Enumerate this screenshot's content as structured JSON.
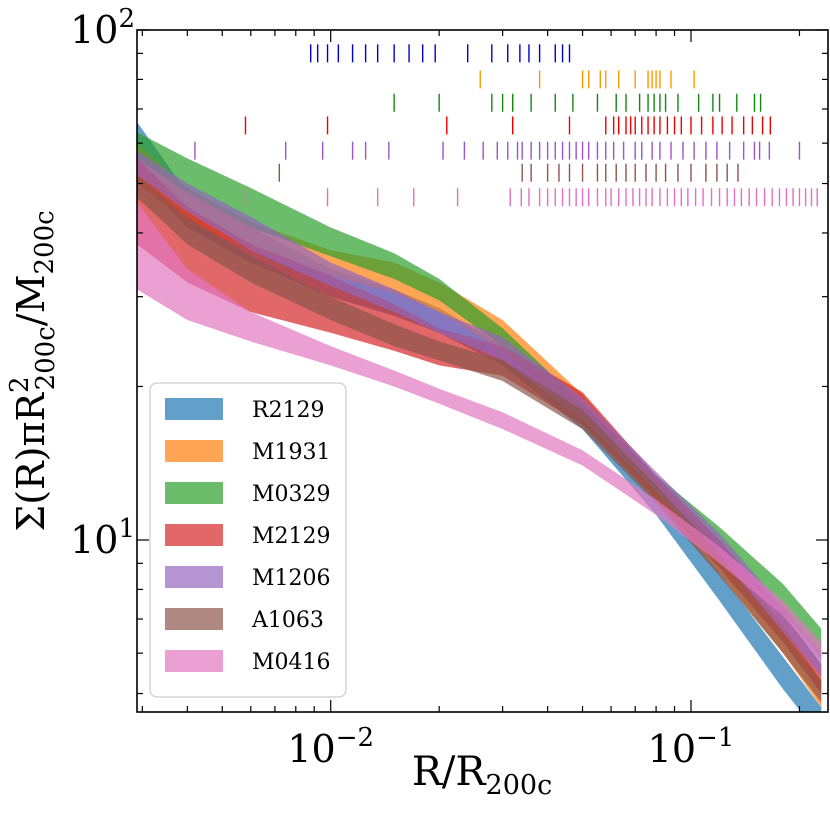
{
  "chart_data": {
    "type": "area",
    "x_scale": "log",
    "y_scale": "log",
    "xlim": [
      0.0029,
      0.24
    ],
    "ylim": [
      4.6,
      100
    ],
    "xlabel": "R/R_200c",
    "ylabel": "Σ(R)πR²_200c/M_200c",
    "x_ticks": [
      {
        "value": 0.01,
        "base": "10",
        "exp": "−2"
      },
      {
        "value": 0.1,
        "base": "10",
        "exp": "−1"
      }
    ],
    "y_ticks": [
      {
        "value": 10,
        "base": "10",
        "exp": "1"
      },
      {
        "value": 100,
        "base": "10",
        "exp": "2"
      }
    ],
    "legend_position": "lower-left",
    "series": [
      {
        "name": "R2129",
        "color": "#1f77b4",
        "x": [
          0.0029,
          0.004,
          0.006,
          0.01,
          0.015,
          0.02,
          0.03,
          0.05,
          0.08,
          0.12,
          0.18,
          0.23
        ],
        "lower": [
          52,
          41,
          35,
          30,
          27.5,
          25.5,
          22,
          16.5,
          11.2,
          7.6,
          5.1,
          4.1
        ],
        "upper": [
          66,
          48,
          41,
          34,
          31,
          28.5,
          24,
          18.5,
          12.4,
          8.6,
          5.9,
          4.7
        ]
      },
      {
        "name": "M1931",
        "color": "#ff7f0e",
        "x": [
          0.0029,
          0.004,
          0.006,
          0.01,
          0.015,
          0.02,
          0.03,
          0.05,
          0.08,
          0.12,
          0.18,
          0.23
        ],
        "lower": [
          50,
          42,
          37,
          33,
          30.5,
          28,
          23.5,
          17.3,
          12,
          8.6,
          6,
          4.7
        ],
        "upper": [
          60,
          49,
          42,
          37,
          35,
          32,
          27,
          19.3,
          13.2,
          9.6,
          6.8,
          5.3
        ]
      },
      {
        "name": "M0329",
        "color": "#2ca02c",
        "x": [
          0.0029,
          0.004,
          0.006,
          0.01,
          0.015,
          0.02,
          0.03,
          0.05,
          0.08,
          0.12,
          0.18,
          0.23
        ],
        "lower": [
          56,
          48,
          41,
          36,
          32.5,
          29.5,
          24,
          17,
          12.3,
          9.4,
          7.2,
          5.9
        ],
        "upper": [
          63,
          56,
          49,
          41,
          36.5,
          32.5,
          26,
          18.5,
          13.4,
          10.6,
          8.2,
          6.7
        ]
      },
      {
        "name": "M2129",
        "color": "#d62728",
        "x": [
          0.0029,
          0.004,
          0.006,
          0.01,
          0.015,
          0.02,
          0.03,
          0.05,
          0.08,
          0.12,
          0.18,
          0.23
        ],
        "lower": [
          38,
          32,
          28,
          25.5,
          23.5,
          22,
          21,
          16.8,
          12,
          8.8,
          6.3,
          5
        ],
        "upper": [
          56,
          45,
          38,
          33,
          29,
          26,
          24,
          19.5,
          13.4,
          10,
          7.2,
          5.7
        ]
      },
      {
        "name": "M1206",
        "color": "#9467bd",
        "x": [
          0.0029,
          0.004,
          0.006,
          0.01,
          0.015,
          0.02,
          0.03,
          0.05,
          0.08,
          0.12,
          0.18,
          0.23
        ],
        "lower": [
          52,
          44,
          37,
          31.5,
          28,
          25.5,
          22.5,
          17.2,
          12.4,
          9.2,
          6.6,
          5.4
        ],
        "upper": [
          58,
          50,
          43,
          35,
          31,
          28,
          25,
          19,
          13.6,
          10.3,
          7.4,
          6
        ]
      },
      {
        "name": "A1063",
        "color": "#8c564b",
        "x": [
          0.0029,
          0.004,
          0.006,
          0.01,
          0.015,
          0.02,
          0.03,
          0.05,
          0.08,
          0.12,
          0.18,
          0.23
        ],
        "lower": [
          47,
          38,
          32,
          27,
          24,
          22.5,
          20.5,
          16.5,
          11.8,
          8.5,
          6,
          4.8
        ],
        "upper": [
          52,
          43,
          36,
          30,
          26.5,
          24.5,
          22.5,
          18,
          12.8,
          9.4,
          6.6,
          5.3
        ]
      },
      {
        "name": "M0416",
        "color": "#e377c2",
        "x": [
          0.0029,
          0.004,
          0.006,
          0.01,
          0.015,
          0.02,
          0.03,
          0.05,
          0.08,
          0.12,
          0.18,
          0.23
        ],
        "lower": [
          31,
          27,
          24.5,
          22,
          20,
          18.5,
          16.5,
          14,
          11.2,
          9,
          7.1,
          5.8
        ],
        "upper": [
          46,
          34,
          28,
          24,
          21.5,
          19.8,
          17.8,
          15,
          12,
          9.7,
          7.6,
          6.3
        ]
      }
    ],
    "rugs": [
      {
        "name": "R2129",
        "color": "#0000cc",
        "y": 90,
        "x": [
          0.0088,
          0.0092,
          0.0098,
          0.0105,
          0.0115,
          0.0125,
          0.0135,
          0.015,
          0.0165,
          0.018,
          0.0195,
          0.024,
          0.028,
          0.031,
          0.0335,
          0.0355,
          0.038,
          0.042,
          0.044,
          0.046
        ]
      },
      {
        "name": "M1931",
        "color": "#ff9900",
        "y": 80,
        "x": [
          0.026,
          0.038,
          0.05,
          0.052,
          0.056,
          0.058,
          0.063,
          0.07,
          0.076,
          0.078,
          0.08,
          0.082,
          0.088,
          0.102
        ]
      },
      {
        "name": "M0329",
        "color": "#118811",
        "y": 72,
        "x": [
          0.015,
          0.02,
          0.028,
          0.03,
          0.032,
          0.036,
          0.042,
          0.047,
          0.055,
          0.062,
          0.066,
          0.072,
          0.076,
          0.079,
          0.082,
          0.085,
          0.092,
          0.105,
          0.115,
          0.12,
          0.134,
          0.15,
          0.156
        ]
      },
      {
        "name": "M2129",
        "color": "#ee0000",
        "y": 65,
        "x": [
          0.0058,
          0.0098,
          0.021,
          0.032,
          0.046,
          0.058,
          0.061,
          0.063,
          0.066,
          0.068,
          0.07,
          0.073,
          0.076,
          0.079,
          0.082,
          0.086,
          0.09,
          0.094,
          0.1,
          0.107,
          0.115,
          0.122,
          0.13,
          0.14,
          0.148,
          0.158,
          0.166
        ]
      },
      {
        "name": "M1206",
        "color": "#9955cc",
        "y": 58,
        "x": [
          0.0042,
          0.0075,
          0.0095,
          0.0115,
          0.0125,
          0.0145,
          0.0205,
          0.0235,
          0.0265,
          0.029,
          0.031,
          0.033,
          0.034,
          0.036,
          0.038,
          0.04,
          0.042,
          0.044,
          0.046,
          0.048,
          0.05,
          0.052,
          0.055,
          0.058,
          0.061,
          0.065,
          0.07,
          0.073,
          0.078,
          0.082,
          0.088,
          0.095,
          0.102,
          0.11,
          0.118,
          0.128,
          0.14,
          0.15,
          0.155,
          0.165,
          0.2
        ]
      },
      {
        "name": "A1063",
        "color": "#8c564b",
        "y": 52.5,
        "x": [
          0.0072,
          0.034,
          0.036,
          0.04,
          0.043,
          0.046,
          0.05,
          0.055,
          0.058,
          0.062,
          0.066,
          0.07,
          0.075,
          0.08,
          0.085,
          0.092,
          0.1,
          0.11,
          0.118,
          0.126,
          0.135
        ]
      },
      {
        "name": "M0416",
        "color": "#e070c0",
        "y": 47,
        "x": [
          0.0058,
          0.0098,
          0.0135,
          0.017,
          0.0225,
          0.0315,
          0.0338,
          0.0355,
          0.038,
          0.04,
          0.042,
          0.044,
          0.046,
          0.048,
          0.05,
          0.052,
          0.055,
          0.058,
          0.06,
          0.063,
          0.066,
          0.069,
          0.072,
          0.075,
          0.078,
          0.082,
          0.086,
          0.09,
          0.094,
          0.098,
          0.103,
          0.108,
          0.114,
          0.12,
          0.126,
          0.132,
          0.138,
          0.145,
          0.152,
          0.16,
          0.168,
          0.176,
          0.184,
          0.192,
          0.2,
          0.208,
          0.216,
          0.224
        ]
      }
    ]
  }
}
